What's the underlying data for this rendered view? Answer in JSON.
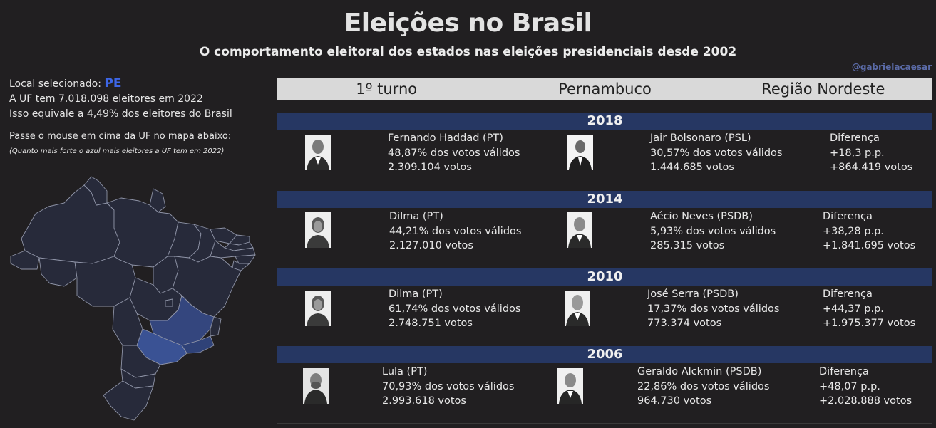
{
  "header": {
    "title": "Eleições no Brasil",
    "subtitle": "O comportamento eleitoral dos estados nas eleições presidenciais desde 2002",
    "handle": "@gabrielacaesar"
  },
  "left_panel": {
    "selected_label": "Local selecionado:",
    "selected_uf": "PE",
    "electors_line": "A UF tem 7.018.098 eleitores em 2022",
    "share_line": "Isso equivale a 4,49% dos eleitores do Brasil",
    "hover_hint": "Passe o mouse em cima da UF no mapa abaixo:",
    "hover_note": "(Quanto mais forte o azul mais eleitores a UF tem em 2022)"
  },
  "map": {
    "base_color": "#272a3a",
    "border_color": "#8e93a6",
    "highlight_colors": [
      "#3a5294",
      "#2f4278",
      "#34467e"
    ]
  },
  "filters": [
    "1º turno",
    "Pernambuco",
    "Região Nordeste"
  ],
  "elections": [
    {
      "year": "2018",
      "winner": {
        "name": "Fernando Haddad (PT)",
        "pct": "48,87% dos votos válidos",
        "votes": "2.309.104 votos"
      },
      "runner": {
        "name": "Jair Bolsonaro (PSL)",
        "pct": "30,57% dos votos válidos",
        "votes": "1.444.685 votos"
      },
      "diff": {
        "label": "Diferença",
        "pp": "+18,3 p.p.",
        "votes": "+864.419 votos"
      }
    },
    {
      "year": "2014",
      "winner": {
        "name": "Dilma (PT)",
        "pct": "44,21% dos votos válidos",
        "votes": "2.127.010 votos"
      },
      "runner": {
        "name": "Aécio Neves (PSDB)",
        "pct": "5,93% dos votos válidos",
        "votes": "285.315 votos"
      },
      "diff": {
        "label": "Diferença",
        "pp": "+38,28 p.p.",
        "votes": "+1.841.695 votos"
      }
    },
    {
      "year": "2010",
      "winner": {
        "name": "Dilma (PT)",
        "pct": "61,74% dos votos válidos",
        "votes": "2.748.751 votos"
      },
      "runner": {
        "name": "José Serra (PSDB)",
        "pct": "17,37% dos votos válidos",
        "votes": "773.374 votos"
      },
      "diff": {
        "label": "Diferença",
        "pp": "+44,37 p.p.",
        "votes": "+1.975.377 votos"
      }
    },
    {
      "year": "2006",
      "winner": {
        "name": "Lula (PT)",
        "pct": "70,93% dos votos válidos",
        "votes": "2.993.618 votos"
      },
      "runner": {
        "name": "Geraldo Alckmin (PSDB)",
        "pct": "22,86% dos votos válidos",
        "votes": "964.730 votos"
      },
      "diff": {
        "label": "Diferença",
        "pp": "+48,07 p.p.",
        "votes": "+2.028.888 votos"
      }
    }
  ]
}
